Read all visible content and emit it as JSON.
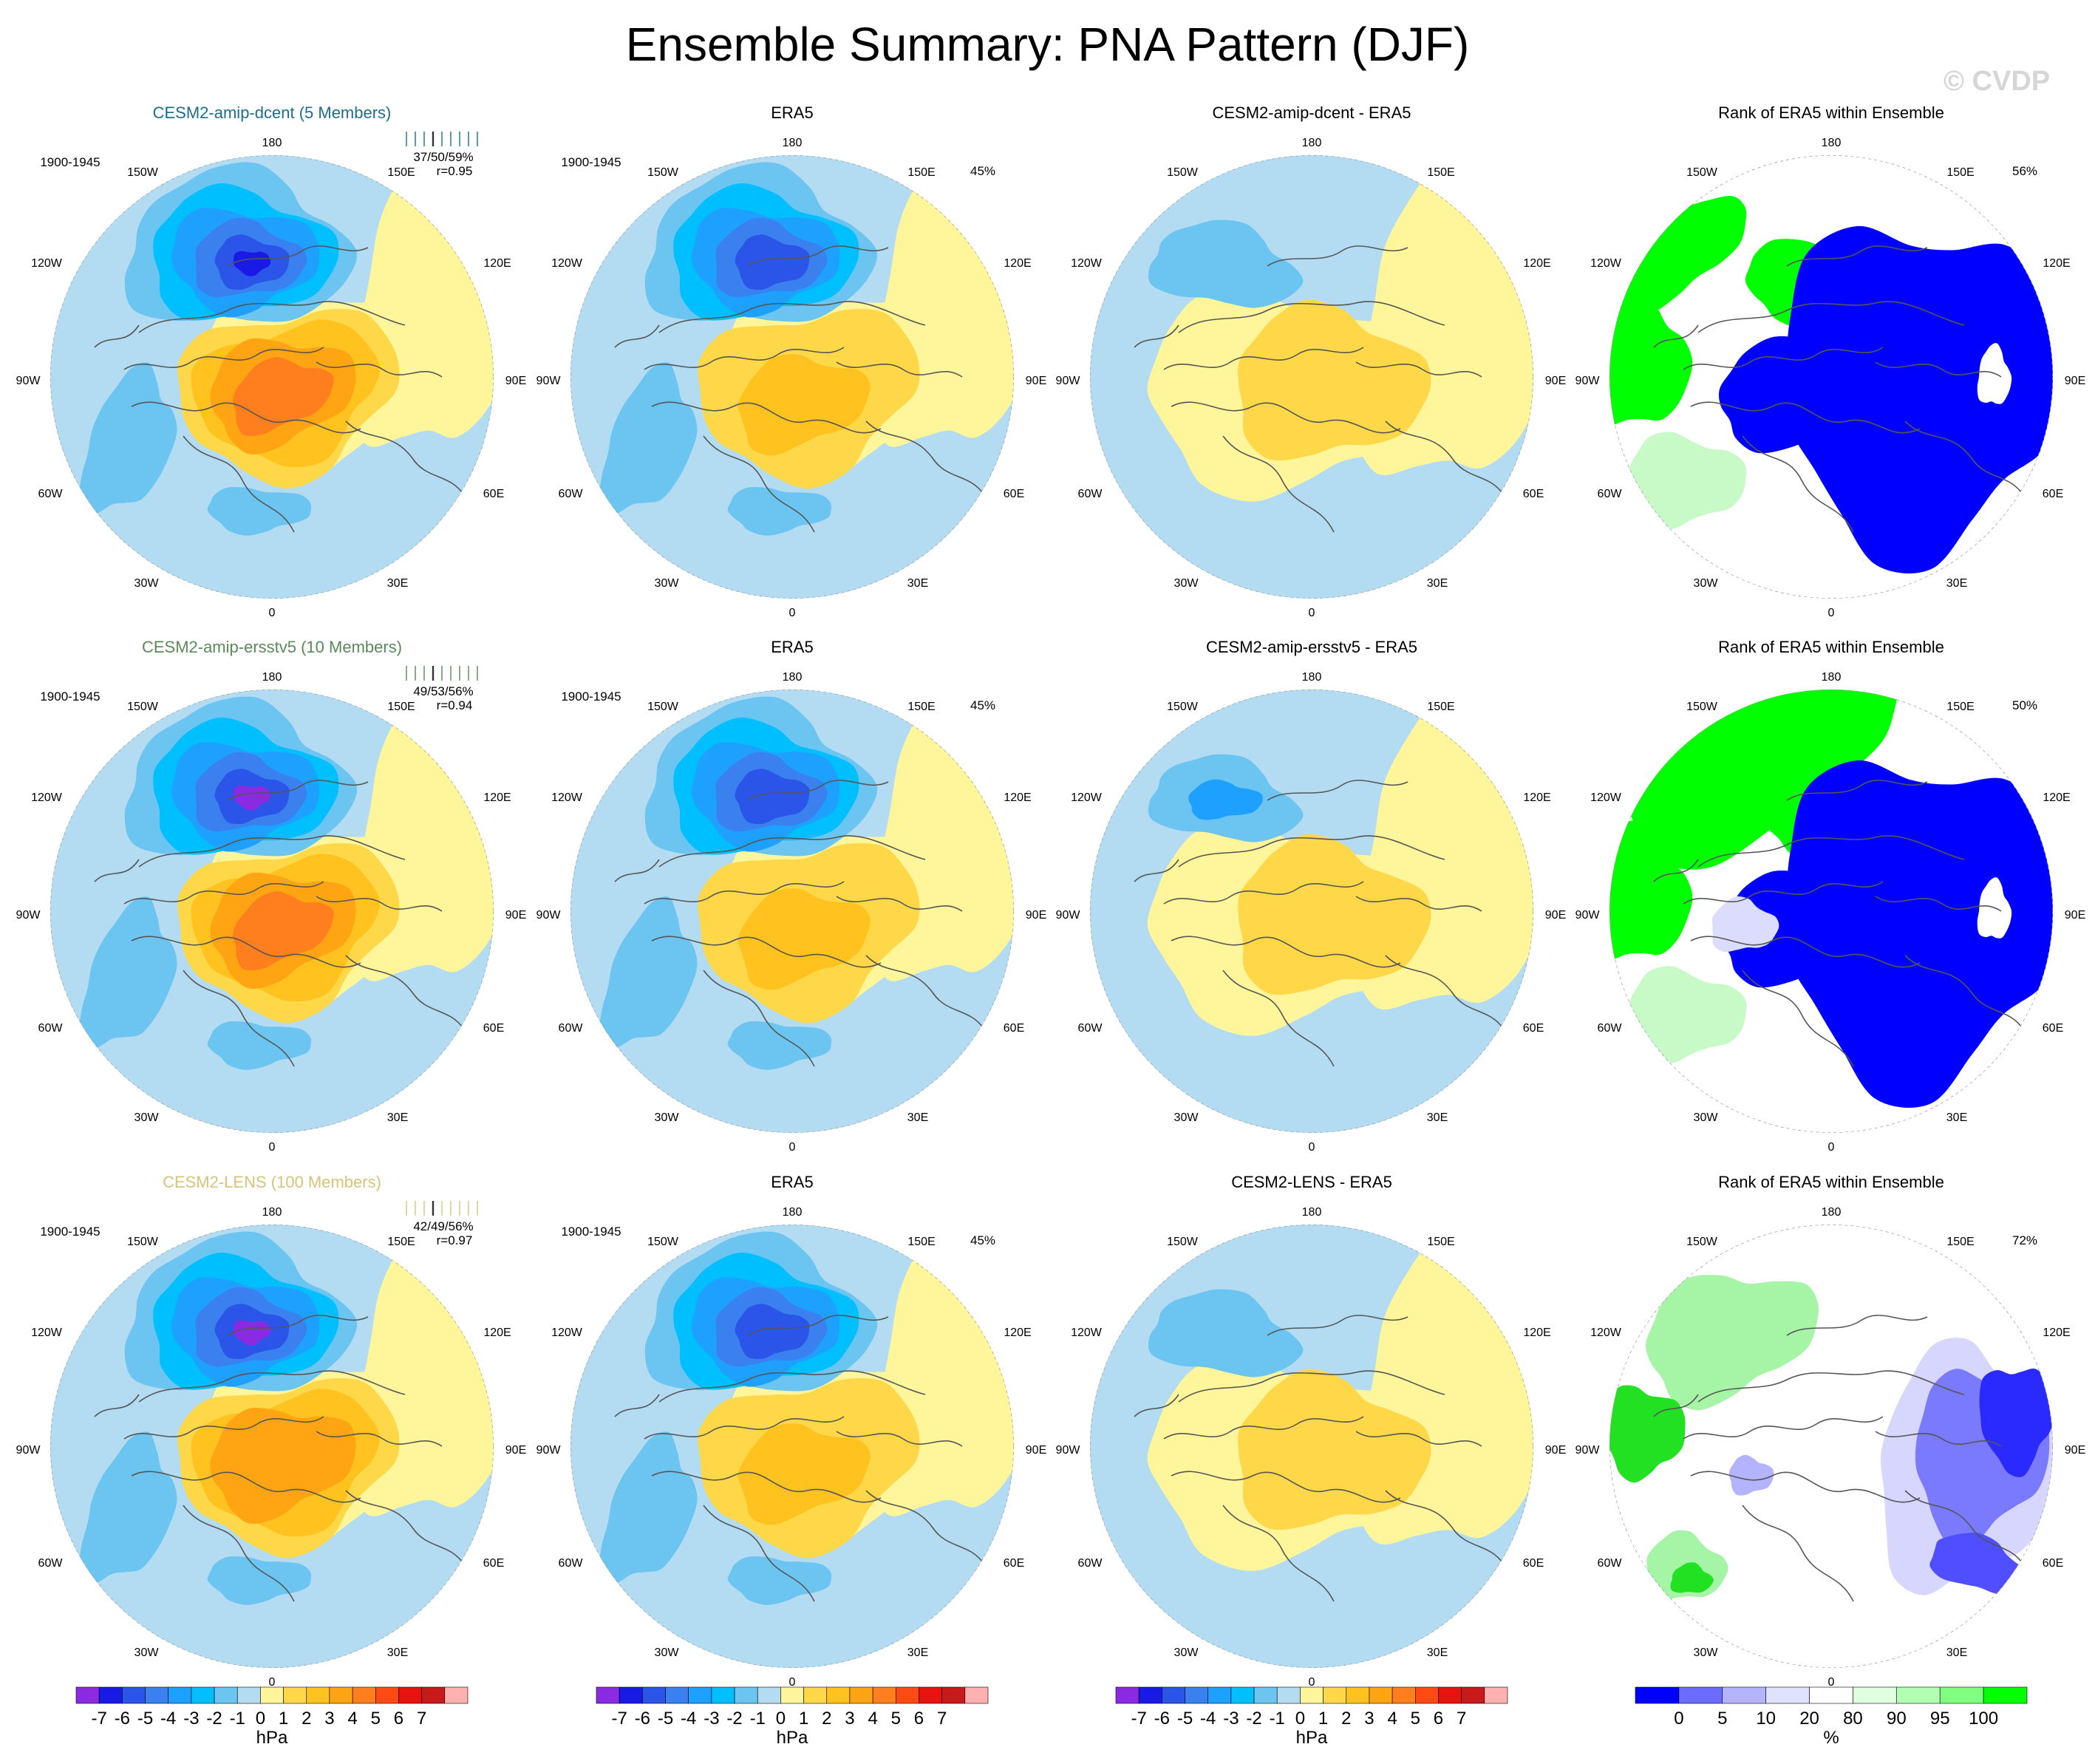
{
  "title": "Ensemble Summary: PNA Pattern (DJF)",
  "watermark": "© CVDP",
  "colors": {
    "neg": [
      "#8a2be2",
      "#1a1ae6",
      "#2b55e8",
      "#3a80ee",
      "#1ea0ff",
      "#00bfff",
      "#6cc4f0",
      "#b3dcf2"
    ],
    "pos": [
      "#fff59a",
      "#ffd84a",
      "#ffc21f",
      "#ffa514",
      "#ff7f1e",
      "#ff4a14",
      "#e8120e",
      "#c81a1a",
      "#ffb0b0"
    ],
    "rank": [
      "#0000ff",
      "#6b6bff",
      "#b3b3ff",
      "#e0e0ff",
      "#ffffff",
      "#e0ffe0",
      "#b3ffb3",
      "#80ff80",
      "#00ff00"
    ],
    "rank_blue": "#0000ff",
    "rank_green": "#00ff00",
    "rank_lightgreen": "#c8fac8",
    "coast": "#555555"
  },
  "meridian_labels": [
    "180",
    "150E",
    "120E",
    "90E",
    "60E",
    "30E",
    "0",
    "30W",
    "60W",
    "90W",
    "120W",
    "150W"
  ],
  "rows": [
    {
      "model": "CESM2-amip-dcent (5 Members)",
      "model_color": "#1d6e8c",
      "period": "1900-1945",
      "stats": "37/50/59%",
      "corr": "r=0.95",
      "diff_title": "CESM2-amip-dcent - ERA5",
      "obs_title": "ERA5",
      "obs_period": "1900-1945",
      "obs_pct": "45%",
      "rank_title": "Rank of ERA5 within Ensemble",
      "rank_pct": "56%"
    },
    {
      "model": "CESM2-amip-ersstv5 (10 Members)",
      "model_color": "#5a8a5a",
      "period": "1900-1945",
      "stats": "49/53/56%",
      "corr": "r=0.94",
      "diff_title": "CESM2-amip-ersstv5 - ERA5",
      "obs_title": "ERA5",
      "obs_period": "1900-1945",
      "obs_pct": "45%",
      "rank_title": "Rank of ERA5 within Ensemble",
      "rank_pct": "50%"
    },
    {
      "model": "CESM2-LENS (100 Members)",
      "model_color": "#d6c47a",
      "period": "1900-1945",
      "stats": "42/49/56%",
      "corr": "r=0.97",
      "diff_title": "CESM2-LENS - ERA5",
      "obs_title": "ERA5",
      "obs_period": "1900-1945",
      "obs_pct": "45%",
      "rank_title": "Rank of ERA5 within Ensemble",
      "rank_pct": "72%"
    }
  ],
  "chart_data": {
    "type": "heatmap",
    "description_units": "hPa",
    "colorbar_hpa": {
      "ticks": [
        "-7",
        "-6",
        "-5",
        "-4",
        "-3",
        "-2",
        "-1",
        "0",
        "1",
        "2",
        "3",
        "4",
        "5",
        "6",
        "7"
      ],
      "unit": "hPa"
    },
    "colorbar_rank": {
      "ticks": [
        "0",
        "5",
        "10",
        "20",
        "80",
        "90",
        "95",
        "100"
      ],
      "unit": "%"
    },
    "projection": "north polar stereographic",
    "panels_per_row": [
      "model ensemble mean",
      "ERA5",
      "model minus ERA5",
      "rank of ERA5 within ensemble"
    ]
  }
}
